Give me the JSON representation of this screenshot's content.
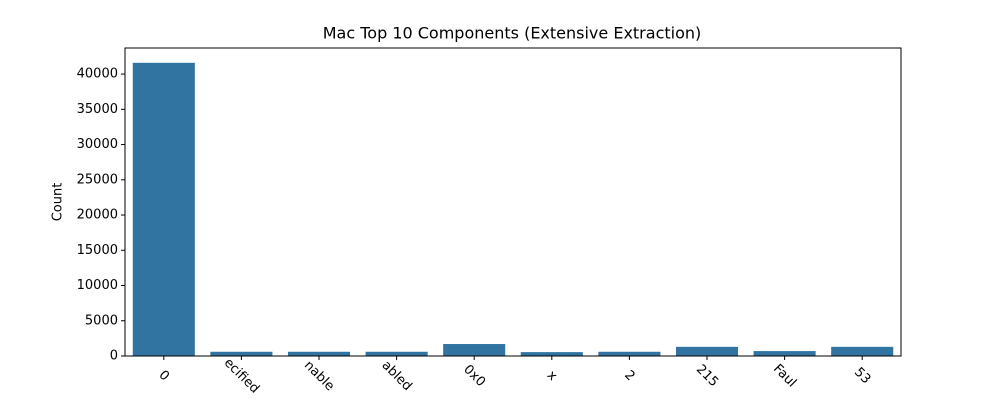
{
  "chart_data": {
    "type": "bar",
    "title": "Mac Top 10 Components (Extensive Extraction)",
    "y_label": "Count",
    "categories": [
      "0",
      "ecified",
      "nable",
      "abled",
      "0x0",
      "x",
      "2",
      "215",
      "Faul",
      "53"
    ],
    "values": [
      41600,
      600,
      600,
      600,
      1700,
      550,
      600,
      1300,
      700,
      1300
    ],
    "color": "#3274a1",
    "ylim": [
      0,
      43700
    ],
    "yticks": [
      0,
      5000,
      10000,
      15000,
      20000,
      25000,
      30000,
      35000,
      40000
    ],
    "grid": false
  }
}
